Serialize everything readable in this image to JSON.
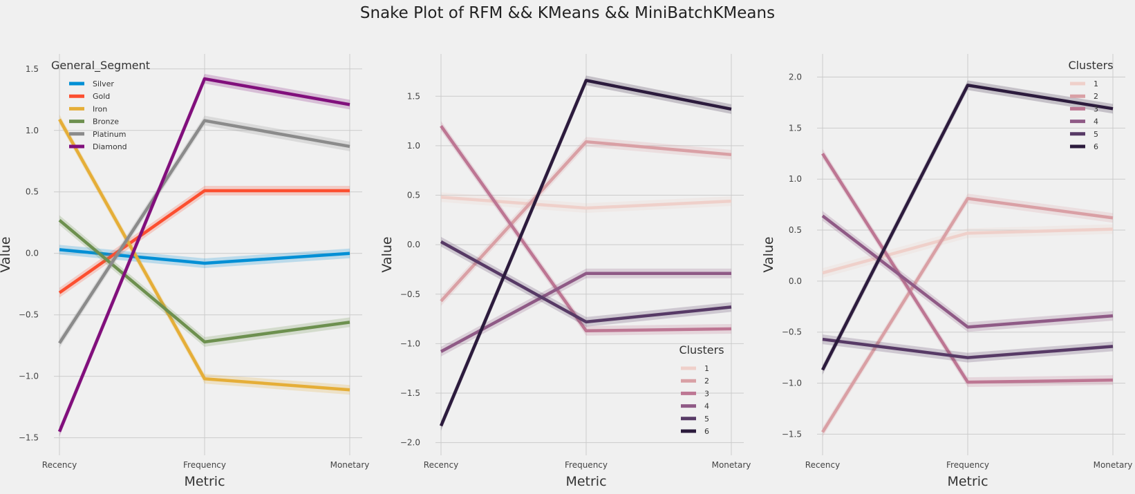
{
  "suptitle": "Snake Plot of RFM  &&  KMeans  &&  MiniBatchKMeans",
  "chart_data": [
    {
      "type": "line",
      "title": "",
      "xlabel": "Metric",
      "ylabel": "Value",
      "categories": [
        "Recency",
        "Frequency",
        "Monetary"
      ],
      "ylim": [
        -1.62,
        1.6
      ],
      "yticks": [
        -1.5,
        -1.0,
        -0.5,
        0.0,
        0.5,
        1.0,
        1.5
      ],
      "ytick_labels": [
        "−1.5",
        "−1.0",
        "−0.5",
        "0.0",
        "0.5",
        "1.0",
        "1.5"
      ],
      "grid": true,
      "legend": {
        "title": "General_Segment",
        "placement": "upper-left"
      },
      "series": [
        {
          "name": "Silver",
          "color": "#008fd5",
          "values": [
            0.03,
            -0.08,
            0.0
          ]
        },
        {
          "name": "Gold",
          "color": "#fc4f30",
          "values": [
            -0.32,
            0.51,
            0.51
          ]
        },
        {
          "name": "Iron",
          "color": "#e5ae38",
          "values": [
            1.09,
            -1.02,
            -1.11
          ]
        },
        {
          "name": "Bronze",
          "color": "#6d904f",
          "values": [
            0.27,
            -0.72,
            -0.56
          ]
        },
        {
          "name": "Platinum",
          "color": "#8b8b8b",
          "values": [
            -0.73,
            1.08,
            0.87
          ]
        },
        {
          "name": "Diamond",
          "color": "#810f7c",
          "values": [
            -1.45,
            1.42,
            1.21
          ]
        }
      ]
    },
    {
      "type": "line",
      "title": "",
      "xlabel": "Metric",
      "ylabel": "Value",
      "categories": [
        "Recency",
        "Frequency",
        "Monetary"
      ],
      "ylim": [
        -2.1,
        1.9
      ],
      "yticks": [
        -2.0,
        -1.5,
        -1.0,
        -0.5,
        0.0,
        0.5,
        1.0,
        1.5
      ],
      "ytick_labels": [
        "−2.0",
        "−1.5",
        "−1.0",
        "−0.5",
        "0.0",
        "0.5",
        "1.0",
        "1.5"
      ],
      "grid": true,
      "legend": {
        "title": "Clusters",
        "placement": "lower-right"
      },
      "series": [
        {
          "name": "1",
          "color": "#efd0ca",
          "values": [
            0.48,
            0.37,
            0.44
          ]
        },
        {
          "name": "2",
          "color": "#d9a0a5",
          "values": [
            -0.57,
            1.04,
            0.91
          ]
        },
        {
          "name": "3",
          "color": "#bd7693",
          "values": [
            1.2,
            -0.87,
            -0.85
          ]
        },
        {
          "name": "4",
          "color": "#8f5a86",
          "values": [
            -1.08,
            -0.29,
            -0.29
          ]
        },
        {
          "name": "5",
          "color": "#573a66",
          "values": [
            0.03,
            -0.78,
            -0.63
          ]
        },
        {
          "name": "6",
          "color": "#2c1b3d",
          "values": [
            -1.83,
            1.66,
            1.37
          ]
        }
      ]
    },
    {
      "type": "line",
      "title": "",
      "xlabel": "Metric",
      "ylabel": "Value",
      "categories": [
        "Recency",
        "Frequency",
        "Monetary"
      ],
      "ylim": [
        -1.68,
        2.2
      ],
      "yticks": [
        -1.5,
        -1.0,
        -0.5,
        0.0,
        0.5,
        1.0,
        1.5,
        2.0
      ],
      "ytick_labels": [
        "−1.5",
        "−1.0",
        "−0.5",
        "0.0",
        "0.5",
        "1.0",
        "1.5",
        "2.0"
      ],
      "grid": true,
      "legend": {
        "title": "Clusters",
        "placement": "upper-right"
      },
      "series": [
        {
          "name": "1",
          "color": "#efd0ca",
          "values": [
            0.08,
            0.47,
            0.51
          ]
        },
        {
          "name": "2",
          "color": "#d9a0a5",
          "values": [
            -1.48,
            0.81,
            0.62
          ]
        },
        {
          "name": "3",
          "color": "#bd7693",
          "values": [
            1.25,
            -0.99,
            -0.97
          ]
        },
        {
          "name": "4",
          "color": "#8f5a86",
          "values": [
            0.64,
            -0.45,
            -0.34
          ]
        },
        {
          "name": "5",
          "color": "#573a66",
          "values": [
            -0.57,
            -0.75,
            -0.64
          ]
        },
        {
          "name": "6",
          "color": "#2c1b3d",
          "values": [
            -0.87,
            1.92,
            1.69
          ]
        }
      ]
    }
  ]
}
